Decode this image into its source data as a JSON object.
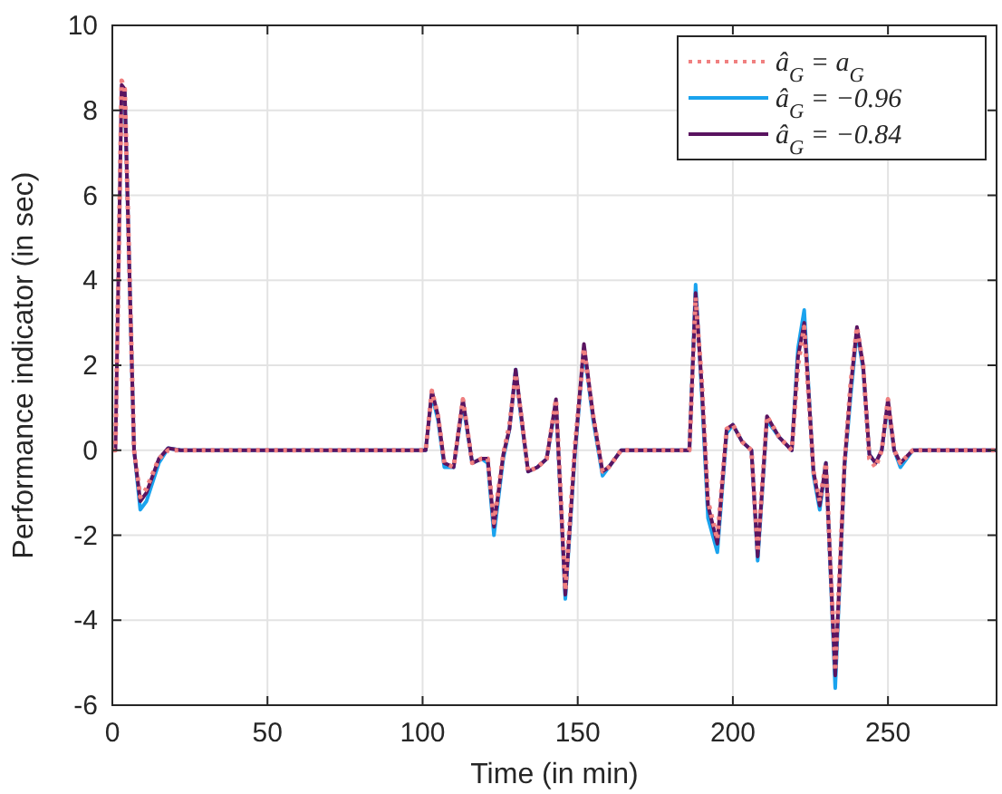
{
  "chart_data": {
    "type": "line",
    "xlabel": "Time (in min)",
    "ylabel": "Performance indicator (in sec)",
    "x": [
      0,
      1,
      3,
      4,
      7,
      9,
      11,
      15,
      18,
      22,
      100,
      101,
      103,
      105,
      107,
      110,
      113,
      116,
      119,
      121,
      123,
      126,
      128,
      130,
      132,
      134,
      137,
      140,
      143,
      146,
      149,
      152,
      155,
      158,
      160,
      164,
      186,
      188,
      190,
      192,
      195,
      198,
      200,
      203,
      206,
      208,
      211,
      215,
      219,
      221,
      223,
      226,
      228,
      230,
      233,
      236,
      238,
      240,
      242,
      244,
      246,
      248,
      250,
      252,
      254,
      258,
      285
    ],
    "series": [
      {
        "name": "â$_{G}$ = a$_{G}$",
        "color": "#f08080",
        "line_style": "dotted",
        "values": [
          0,
          0,
          8.7,
          8.5,
          0,
          -1.1,
          -0.9,
          -0.2,
          0,
          0,
          0,
          0,
          1.4,
          0.8,
          -0.3,
          -0.4,
          1.2,
          -0.3,
          -0.2,
          -0.2,
          -1.7,
          -0.1,
          0.6,
          1.8,
          0.7,
          -0.5,
          -0.4,
          -0.2,
          1.2,
          -3.3,
          0,
          2.4,
          0.8,
          -0.5,
          -0.4,
          0,
          0,
          3.6,
          1.6,
          -1.2,
          -2.1,
          0.5,
          0.6,
          0.2,
          0,
          -2.4,
          0.8,
          0.3,
          0,
          2.0,
          2.9,
          -0.5,
          -1.2,
          -0.3,
          -5.2,
          -0.3,
          1.6,
          2.9,
          2.0,
          -0.2,
          -0.4,
          0,
          1.2,
          0,
          -0.3,
          0,
          0
        ]
      },
      {
        "name": "â$_{G}$ = −0.96",
        "color": "#1aa3ee",
        "line_style": "solid",
        "values": [
          null,
          null,
          null,
          8.4,
          0,
          -1.4,
          -1.2,
          -0.3,
          0.05,
          0,
          0,
          0,
          1.3,
          0.7,
          -0.4,
          -0.4,
          1.1,
          -0.3,
          -0.2,
          -0.3,
          -2.0,
          -0.2,
          0.5,
          1.9,
          0.6,
          -0.5,
          -0.4,
          -0.2,
          1.1,
          -3.5,
          -0.2,
          2.4,
          0.7,
          -0.6,
          -0.4,
          0,
          0,
          3.9,
          1.3,
          -1.6,
          -2.4,
          0.4,
          0.6,
          0.2,
          0,
          -2.6,
          0.7,
          0.3,
          0,
          2.4,
          3.3,
          -0.6,
          -1.4,
          -0.3,
          -5.6,
          -0.4,
          1.3,
          2.8,
          1.9,
          -0.1,
          -0.3,
          0,
          1.1,
          0,
          -0.4,
          0,
          0
        ]
      },
      {
        "name": "â$_{G}$ = −0.84",
        "color": "#5a1460",
        "line_style": "solid",
        "values": [
          0,
          0,
          8.6,
          8.5,
          0,
          -1.2,
          -1.0,
          -0.2,
          0.05,
          0,
          0,
          0,
          1.4,
          0.8,
          -0.3,
          -0.4,
          1.2,
          -0.3,
          -0.2,
          -0.2,
          -1.8,
          -0.1,
          0.5,
          1.9,
          0.7,
          -0.5,
          -0.4,
          -0.2,
          1.2,
          -3.4,
          -0.1,
          2.5,
          0.8,
          -0.5,
          -0.4,
          0,
          0,
          3.7,
          1.5,
          -1.3,
          -2.2,
          0.5,
          0.6,
          0.2,
          0,
          -2.5,
          0.8,
          0.3,
          0,
          2.2,
          3.0,
          -0.5,
          -1.3,
          -0.3,
          -5.3,
          -0.3,
          1.5,
          2.9,
          2.0,
          -0.1,
          -0.3,
          0,
          1.2,
          0,
          -0.3,
          0,
          0
        ]
      }
    ],
    "xlim": [
      0,
      285
    ],
    "xticks": [
      0,
      50,
      100,
      150,
      200,
      250
    ],
    "ylim": [
      -6,
      10
    ],
    "yticks": [
      -6,
      -4,
      -2,
      0,
      2,
      4,
      6,
      8,
      10
    ],
    "grid": true,
    "legend": "top right"
  }
}
